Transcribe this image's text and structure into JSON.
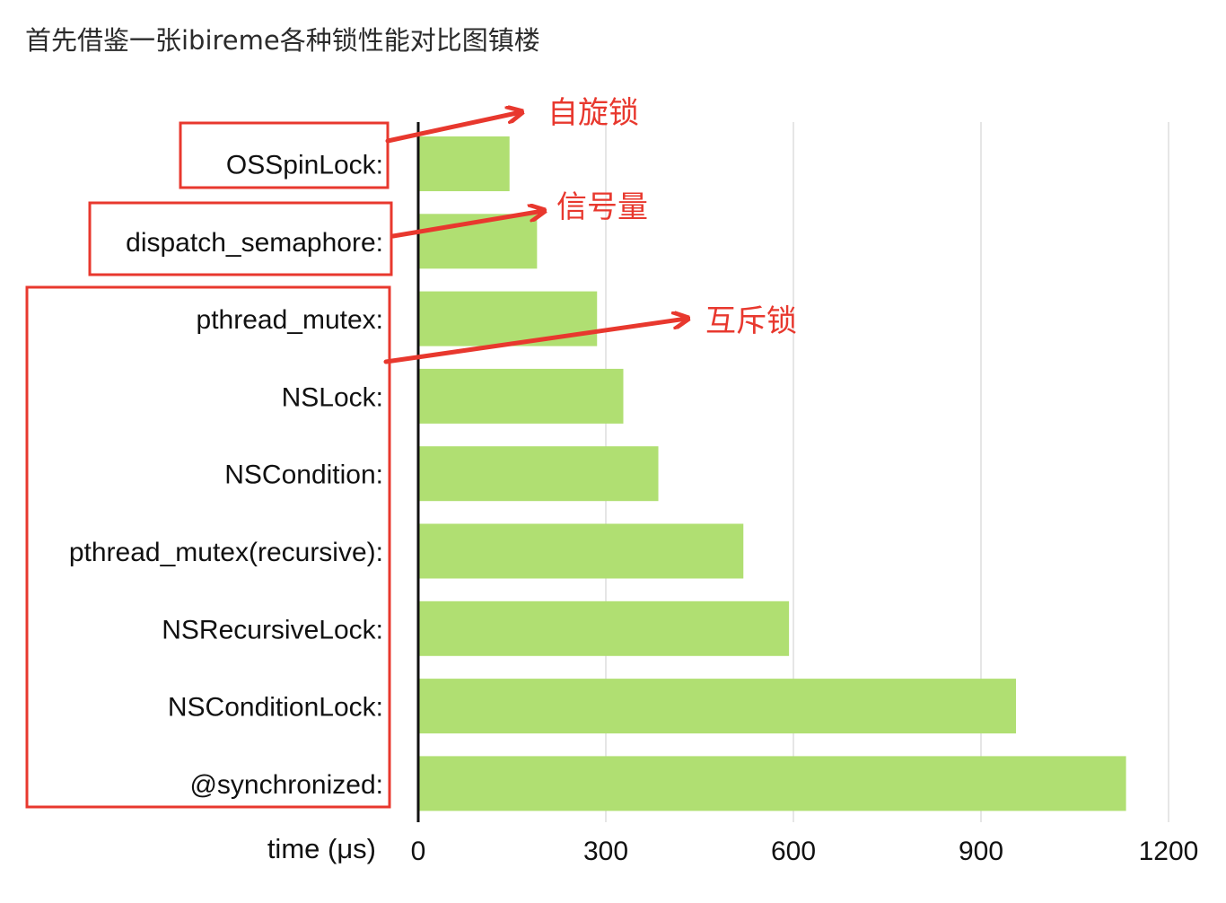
{
  "caption": "首先借鉴一张ibireme各种锁性能对比图镇楼",
  "chart_data": {
    "type": "bar",
    "orientation": "horizontal",
    "categories": [
      "OSSpinLock:",
      "dispatch_semaphore:",
      "pthread_mutex:",
      "NSLock:",
      "NSCondition:",
      "pthread_mutex(recursive):",
      "NSRecursiveLock:",
      "NSConditionLock:",
      "@synchronized:"
    ],
    "values": [
      146,
      190,
      286,
      328,
      384,
      520,
      593,
      956,
      1132
    ],
    "xlabel": "time (μs)",
    "xlim": [
      0,
      1200
    ],
    "xticks": [
      "0",
      "300",
      "600",
      "900",
      "1200"
    ],
    "grid": "vertical",
    "bar_color": "#b0df72",
    "annotations": [
      {
        "text": "自旋锁",
        "targets": [
          "OSSpinLock:"
        ]
      },
      {
        "text": "信号量",
        "targets": [
          "dispatch_semaphore:"
        ]
      },
      {
        "text": "互斥锁",
        "targets": [
          "pthread_mutex:",
          "NSLock:",
          "NSCondition:",
          "pthread_mutex(recursive):",
          "NSRecursiveLock:",
          "NSConditionLock:",
          "@synchronized:"
        ]
      }
    ],
    "annotation_color": "#e8382e"
  }
}
